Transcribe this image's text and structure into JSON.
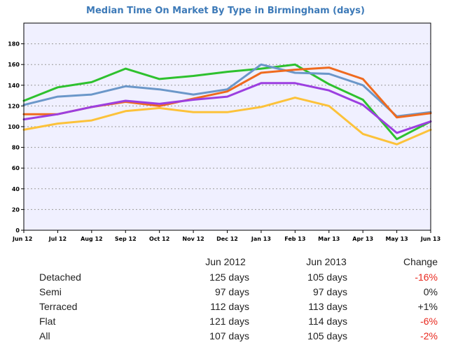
{
  "chart_data": {
    "type": "line",
    "title": "Median Time On Market By Type in Birmingham (days)",
    "xlabel": "",
    "ylabel": "",
    "x": [
      "Jun 12",
      "Jul 12",
      "Aug 12",
      "Sep 12",
      "Oct 12",
      "Nov 12",
      "Dec 12",
      "Jan 13",
      "Feb 13",
      "Mar 13",
      "Apr 13",
      "May 13",
      "Jun 13"
    ],
    "yticks": [
      0,
      20,
      40,
      60,
      80,
      100,
      120,
      140,
      160,
      180
    ],
    "ylim": [
      0,
      200
    ],
    "grid": true,
    "legend": "none",
    "series": [
      {
        "color": "#2ec12e",
        "values": [
          125,
          138,
          143,
          156,
          146,
          149,
          153,
          156,
          160,
          141,
          126,
          88,
          105
        ]
      },
      {
        "color": "#6b97c9",
        "values": [
          121,
          129,
          131,
          139,
          136,
          131,
          136,
          160,
          152,
          151,
          140,
          110,
          114
        ]
      },
      {
        "color": "#ef6a1f",
        "values": [
          112,
          112,
          119,
          124,
          120,
          127,
          134,
          152,
          155,
          157,
          146,
          109,
          113
        ]
      },
      {
        "color": "#9c3fe0",
        "values": [
          107,
          112,
          119,
          125,
          122,
          126,
          129,
          142,
          142,
          135,
          121,
          94,
          105
        ]
      },
      {
        "color": "#fcc23a",
        "values": [
          97,
          103,
          106,
          115,
          118,
          114,
          114,
          119,
          128,
          120,
          93,
          83,
          97
        ]
      }
    ]
  },
  "summary": {
    "headers": {
      "col1": "Jun 2012",
      "col2": "Jun 2013",
      "col3": "Change"
    },
    "rows": [
      {
        "type": "Detached",
        "jun2012": "125 days",
        "jun2013": "105 days",
        "change": "-16%",
        "negative": true
      },
      {
        "type": "Semi",
        "jun2012": "97 days",
        "jun2013": "97 days",
        "change": "0%",
        "negative": false
      },
      {
        "type": "Terraced",
        "jun2012": "112 days",
        "jun2013": "113 days",
        "change": "+1%",
        "negative": false
      },
      {
        "type": "Flat",
        "jun2012": "121 days",
        "jun2013": "114 days",
        "change": "-6%",
        "negative": true
      },
      {
        "type": "All",
        "jun2012": "107 days",
        "jun2013": "105 days",
        "change": "-2%",
        "negative": true
      }
    ]
  }
}
